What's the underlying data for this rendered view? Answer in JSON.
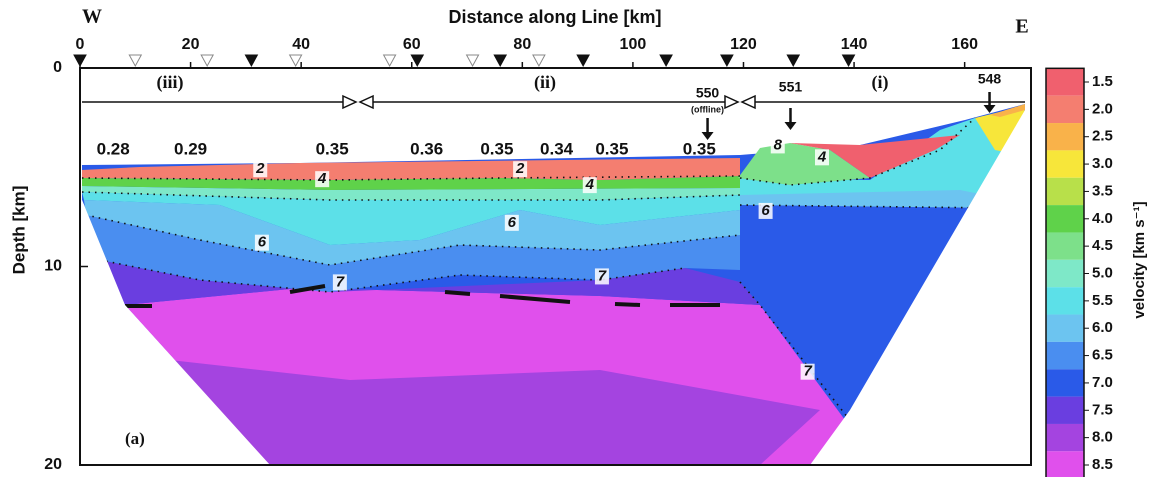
{
  "chart_data": {
    "type": "velocity-section",
    "title": "Distance along Line [km]",
    "y_label": "Depth [km]",
    "west_label": "W",
    "east_label": "E",
    "panel_label": "(a)",
    "xlim": [
      0,
      172
    ],
    "xticks": [
      0,
      20,
      40,
      60,
      80,
      100,
      120,
      140,
      160
    ],
    "ylim": [
      0,
      20
    ],
    "yticks": [
      0,
      10,
      20
    ],
    "regions": [
      "(iii)",
      "(ii)",
      "(i)"
    ],
    "annotations": {
      "x": [
        6,
        20,
        45.6,
        62.7,
        75.4,
        86.2,
        96.2,
        112
      ],
      "values": [
        0.28,
        0.29,
        0.35,
        0.36,
        0.35,
        0.34,
        0.35,
        0.35
      ]
    },
    "contour_labels": {
      "x": [
        32.6,
        43.8,
        32.9,
        47,
        79.6,
        92.2,
        78.1,
        94.4,
        126.2,
        134.2,
        124,
        131.6
      ],
      "depth": [
        5.1,
        5.6,
        8.8,
        10.8,
        5.1,
        5.9,
        7.8,
        10.5,
        3.9,
        4.5,
        7.2,
        15.3
      ],
      "values": [
        2,
        4,
        6,
        7,
        2,
        4,
        6,
        7,
        8,
        4,
        6,
        7
      ]
    },
    "stations": {
      "names": [
        "550",
        "551",
        "548"
      ],
      "x": [
        113.5,
        128.5,
        164.5
      ],
      "offline_note": "(offline)"
    },
    "colorbar": {
      "label": "velocity [km s⁻¹]",
      "ticks": [
        1.5,
        {
          "value": 2,
          "label": "2.0"
        },
        2.5,
        {
          "value": 3,
          "label": "3.0"
        },
        3.5,
        {
          "value": 4,
          "label": "4.0"
        },
        4.5,
        {
          "value": 5,
          "label": "5.0"
        },
        5.5,
        {
          "value": 6,
          "label": "6.0"
        },
        6.5,
        {
          "value": 7,
          "label": "7.0"
        },
        7.5,
        {
          "value": 8,
          "label": "8.0"
        },
        8.5
      ],
      "colors": [
        "#f0606e",
        "#f47e70",
        "#f9b24a",
        "#f7e63a",
        "#b8e04a",
        "#5fd24a",
        "#7de08a",
        "#7ee8c8",
        "#5ce0e8",
        "#6cc4f0",
        "#4a8ef0",
        "#2a5ae8",
        "#6a3ee0",
        "#a444e0",
        "#e050ec"
      ]
    }
  }
}
